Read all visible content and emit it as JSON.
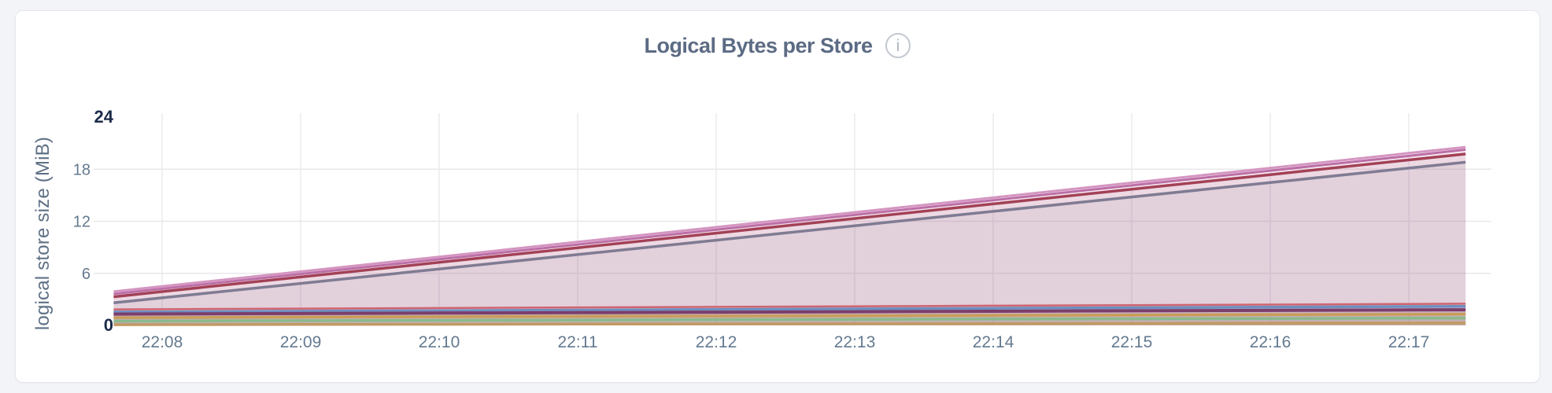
{
  "card": {
    "title": "Logical Bytes per Store",
    "info_icon": "info-icon"
  },
  "chart_data": {
    "type": "area",
    "title": "Logical Bytes per Store",
    "xlabel": "",
    "ylabel": "logical store size (MiB)",
    "ylim": [
      0,
      24
    ],
    "yticks": [
      0,
      6,
      12,
      18,
      24
    ],
    "yticks_emphasized": [
      0,
      24
    ],
    "grid": true,
    "legend": "none",
    "x_tick_labels": [
      "22:08",
      "22:09",
      "22:10",
      "22:11",
      "22:12",
      "22:13",
      "22:14",
      "22:15",
      "22:16",
      "22:17"
    ],
    "x_offsets_min": [
      -0.35,
      0,
      1,
      2,
      3,
      4,
      5,
      6,
      7,
      8,
      9,
      9.41
    ],
    "series": [
      {
        "name": "pink",
        "color": "#d495c1",
        "stroke_width": 3,
        "fill_opacity": 0.09,
        "values": [
          3.9,
          4.5,
          6.2,
          7.91,
          9.62,
          11.32,
          13.03,
          14.73,
          16.44,
          18.14,
          19.85,
          20.55
        ]
      },
      {
        "name": "magenta",
        "color": "#bc6fa6",
        "stroke_width": 3,
        "fill_opacity": 0.09,
        "values": [
          3.62,
          4.22,
          5.92,
          7.62,
          9.32,
          11.02,
          12.73,
          14.43,
          16.13,
          17.83,
          19.53,
          20.25
        ]
      },
      {
        "name": "crimson",
        "color": "#a34156",
        "stroke_width": 3.5,
        "fill_opacity": 0.09,
        "values": [
          3.3,
          3.89,
          5.58,
          7.26,
          8.95,
          10.63,
          12.32,
          14.0,
          15.69,
          17.37,
          19.06,
          19.75
        ]
      },
      {
        "name": "slate",
        "color": "#7f7b93",
        "stroke_width": 3.5,
        "fill_opacity": 0.09,
        "values": [
          2.6,
          3.18,
          4.84,
          6.5,
          8.16,
          9.82,
          11.48,
          13.14,
          14.8,
          16.46,
          18.12,
          18.8
        ]
      },
      {
        "name": "salmon",
        "color": "#cf6570",
        "stroke_width": 2.5,
        "fill_opacity": 0.1,
        "values": [
          1.85,
          1.87,
          1.94,
          2.0,
          2.07,
          2.14,
          2.2,
          2.27,
          2.34,
          2.4,
          2.47,
          2.5
        ]
      },
      {
        "name": "steel-blue",
        "color": "#6e8fc0",
        "stroke_width": 3.5,
        "fill_opacity": 0.1,
        "values": [
          1.55,
          1.57,
          1.64,
          1.7,
          1.77,
          1.84,
          1.9,
          1.97,
          2.04,
          2.1,
          2.17,
          2.2
        ]
      },
      {
        "name": "plum",
        "color": "#7c3e6b",
        "stroke_width": 4,
        "fill_opacity": 0.1,
        "values": [
          1.3,
          1.32,
          1.37,
          1.42,
          1.47,
          1.52,
          1.58,
          1.63,
          1.68,
          1.73,
          1.78,
          1.8
        ]
      },
      {
        "name": "gold",
        "color": "#c89e58",
        "stroke_width": 3.5,
        "fill_opacity": 0.1,
        "values": [
          0.9,
          0.91,
          0.96,
          1.0,
          1.04,
          1.08,
          1.12,
          1.16,
          1.2,
          1.24,
          1.28,
          1.3
        ]
      },
      {
        "name": "green",
        "color": "#8aba8c",
        "stroke_width": 3.5,
        "fill_opacity": 0.1,
        "values": [
          0.5,
          0.51,
          0.55,
          0.58,
          0.62,
          0.66,
          0.69,
          0.73,
          0.76,
          0.8,
          0.84,
          0.85
        ]
      },
      {
        "name": "tan",
        "color": "#c19a63",
        "stroke_width": 3.5,
        "fill_opacity": 0.1,
        "values": [
          0.08,
          0.09,
          0.11,
          0.13,
          0.15,
          0.17,
          0.19,
          0.21,
          0.23,
          0.25,
          0.27,
          0.28
        ]
      }
    ],
    "colors": {
      "grid_horizontal": "#e8e8eb",
      "grid_vertical": "#ebebee",
      "tick_label": "#64798f",
      "tick_label_emphasized": "#1c2b4a",
      "title": "#5c6b84",
      "axis_title": "#5e7085",
      "info_icon": "#c3c8d0"
    }
  }
}
